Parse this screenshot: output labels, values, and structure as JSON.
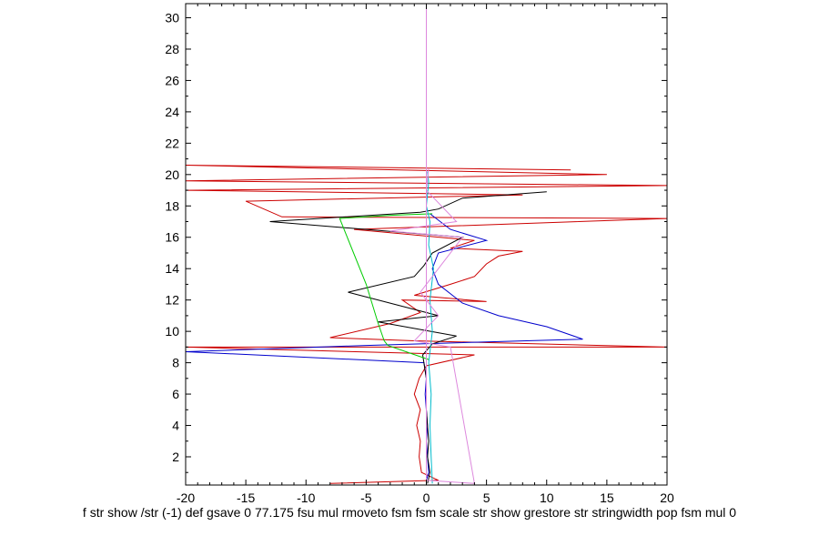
{
  "chart_data": {
    "type": "line",
    "title": "",
    "xlabel": "",
    "ylabel": "",
    "xlim": [
      -20,
      20
    ],
    "ylim": [
      0.2,
      30.9
    ],
    "x_ticks": [
      -20,
      -15,
      -10,
      -5,
      0,
      5,
      10,
      15,
      20
    ],
    "y_ticks": [
      2,
      4,
      6,
      8,
      10,
      12,
      14,
      16,
      18,
      20,
      22,
      24,
      26,
      28,
      30
    ],
    "grid": false,
    "legend": "none",
    "series": [
      {
        "color": "#cc0000",
        "points": [
          [
            -8,
            0.3
          ],
          [
            1,
            0.5
          ],
          [
            -0.4,
            1
          ],
          [
            -0.6,
            2
          ],
          [
            -0.5,
            3
          ],
          [
            -0.8,
            4
          ],
          [
            -0.5,
            5
          ],
          [
            -1,
            6
          ],
          [
            -0.6,
            7
          ],
          [
            0,
            7.8
          ],
          [
            4,
            8.5
          ],
          [
            -20,
            9
          ],
          [
            20,
            9
          ],
          [
            -1,
            9.4
          ],
          [
            -8,
            9.6
          ],
          [
            -3,
            10.5
          ],
          [
            -0.5,
            11.2
          ],
          [
            -2,
            12
          ],
          [
            5,
            11.9
          ],
          [
            -1,
            12.3
          ],
          [
            2,
            13
          ],
          [
            4,
            13.5
          ],
          [
            5,
            14.3
          ],
          [
            6,
            14.8
          ],
          [
            8,
            15.1
          ],
          [
            2,
            15.3
          ],
          [
            4,
            15.8
          ],
          [
            -6,
            16.5
          ],
          [
            20,
            17.2
          ],
          [
            -12,
            17.3
          ],
          [
            -15,
            18.3
          ],
          [
            8,
            18.7
          ],
          [
            -20,
            19
          ],
          [
            20,
            19.3
          ],
          [
            -20,
            19.6
          ],
          [
            15,
            20
          ],
          [
            -20,
            20.6
          ],
          [
            12,
            20.3
          ]
        ]
      },
      {
        "color": "#0000cc",
        "points": [
          [
            0,
            0.5
          ],
          [
            0.2,
            1
          ],
          [
            0.1,
            2
          ],
          [
            0,
            3
          ],
          [
            0.1,
            4
          ],
          [
            0,
            5
          ],
          [
            -0.1,
            6
          ],
          [
            0,
            7
          ],
          [
            -0.2,
            8
          ],
          [
            -20,
            8.7
          ],
          [
            -5,
            9.1
          ],
          [
            13,
            9.5
          ],
          [
            10,
            10.3
          ],
          [
            6,
            11
          ],
          [
            3,
            11.8
          ],
          [
            1,
            13
          ],
          [
            0.5,
            14
          ],
          [
            1,
            15
          ],
          [
            5,
            15.8
          ],
          [
            2,
            16.5
          ],
          [
            0.3,
            17.5
          ]
        ]
      },
      {
        "color": "#000000",
        "points": [
          [
            0.1,
            0.3
          ],
          [
            0.3,
            1
          ],
          [
            0.1,
            2
          ],
          [
            0.2,
            3
          ],
          [
            0,
            5
          ],
          [
            0,
            7
          ],
          [
            -0.3,
            8.5
          ],
          [
            0.5,
            9.2
          ],
          [
            2.5,
            9.7
          ],
          [
            -4,
            10.6
          ],
          [
            1,
            11
          ],
          [
            -6.5,
            12.5
          ],
          [
            -1,
            13.5
          ],
          [
            -0.2,
            14.2
          ],
          [
            0.5,
            15
          ],
          [
            3,
            16
          ],
          [
            -13,
            17
          ],
          [
            -0.5,
            17.6
          ],
          [
            1,
            17.8
          ],
          [
            3,
            18.5
          ],
          [
            10,
            18.9
          ]
        ]
      },
      {
        "color": "#00cc00",
        "points": [
          [
            0.2,
            8.2
          ],
          [
            -3.2,
            9.1
          ],
          [
            -3.5,
            9.4
          ],
          [
            -4,
            10.5
          ],
          [
            -5,
            13
          ],
          [
            -7.2,
            17.2
          ],
          [
            -3,
            17.4
          ],
          [
            0.5,
            17.5
          ]
        ]
      },
      {
        "color": "#00bbcc",
        "points": [
          [
            0.5,
            0.3
          ],
          [
            0.4,
            2
          ],
          [
            0.3,
            4
          ],
          [
            0.4,
            6
          ],
          [
            0.2,
            8
          ],
          [
            0.5,
            10
          ],
          [
            0.3,
            12
          ],
          [
            0.6,
            14
          ],
          [
            0.2,
            15.5
          ],
          [
            0.3,
            17
          ],
          [
            0,
            18
          ],
          [
            0.2,
            19.5
          ],
          [
            0.1,
            20.2
          ]
        ]
      },
      {
        "color": "#dd88dd",
        "points": [
          [
            0,
            0.2
          ],
          [
            0,
            30.9
          ],
          [
            0,
            0.5
          ],
          [
            4,
            0.3
          ],
          [
            2,
            9
          ],
          [
            -1,
            9.4
          ],
          [
            1,
            11
          ],
          [
            -0.5,
            12.5
          ],
          [
            3,
            16
          ],
          [
            -3,
            16.4
          ],
          [
            2.5,
            17
          ],
          [
            0,
            19
          ],
          [
            0.2,
            20.4
          ]
        ]
      }
    ]
  },
  "footer": {
    "caption": "f str show /str (-1) def gsave 0 77.175 fsu mul rmoveto fsm fsm scale str show grestore str stringwidth pop fsm mul 0"
  }
}
